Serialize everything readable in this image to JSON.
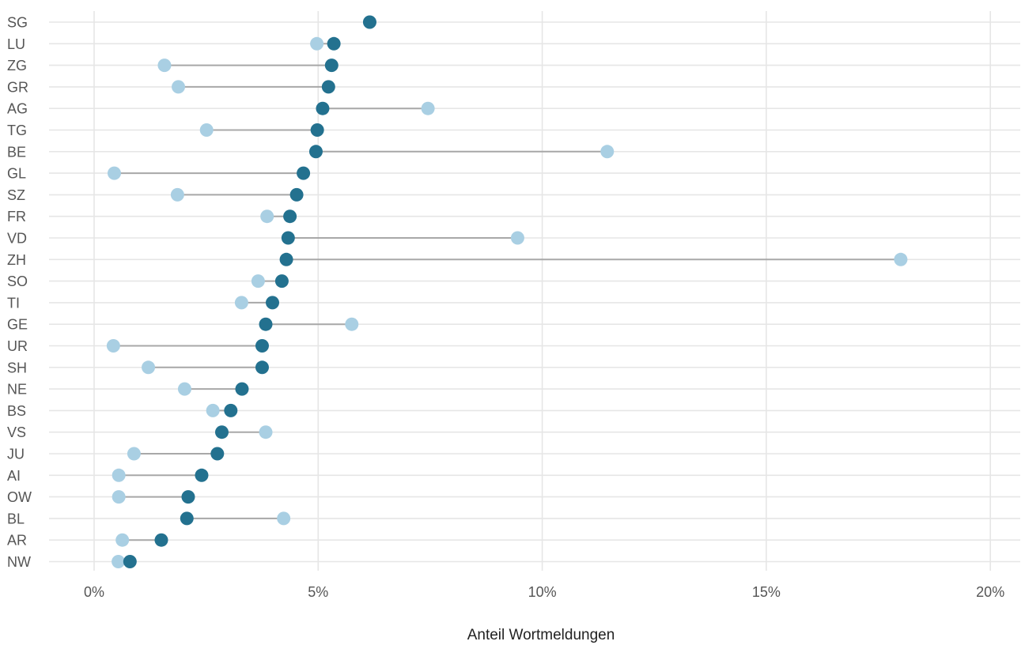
{
  "chart_data": {
    "type": "dumbbell",
    "xlabel": "Anteil Wortmeldungen",
    "xlim": [
      -0.01,
      0.205
    ],
    "xticks": [
      0,
      0.05,
      0.1,
      0.15,
      0.2
    ],
    "xtick_labels": [
      "0%",
      "5%",
      "10%",
      "15%",
      "20%"
    ],
    "grid": true,
    "colors": {
      "dark": "#23718f",
      "light": "#a9cfe3",
      "connector": "#a8a8a8",
      "grid": "#e6e6e6"
    },
    "categories": [
      "SG",
      "LU",
      "ZG",
      "GR",
      "AG",
      "TG",
      "BE",
      "GL",
      "SZ",
      "FR",
      "VD",
      "ZH",
      "SO",
      "TI",
      "GE",
      "UR",
      "SH",
      "NE",
      "BS",
      "VS",
      "JU",
      "AI",
      "OW",
      "BL",
      "AR",
      "NW"
    ],
    "series": [
      {
        "values": [
          0.0615,
          0.0535,
          0.053,
          0.0523,
          0.051,
          0.0498,
          0.0495,
          0.0467,
          0.0452,
          0.0437,
          0.0433,
          0.0429,
          0.0419,
          0.0398,
          0.0383,
          0.0375,
          0.0375,
          0.033,
          0.0305,
          0.0285,
          0.0275,
          0.024,
          0.021,
          0.0207,
          0.015,
          0.008
        ]
      },
      {
        "values": [
          0.0615,
          0.0497,
          0.0157,
          0.0188,
          0.0745,
          0.0251,
          0.1145,
          0.0045,
          0.0186,
          0.0386,
          0.0945,
          0.18,
          0.0366,
          0.0329,
          0.0575,
          0.0043,
          0.0121,
          0.0202,
          0.0265,
          0.0383,
          0.0089,
          0.0055,
          0.0055,
          0.0423,
          0.0063,
          0.0054
        ]
      }
    ]
  }
}
